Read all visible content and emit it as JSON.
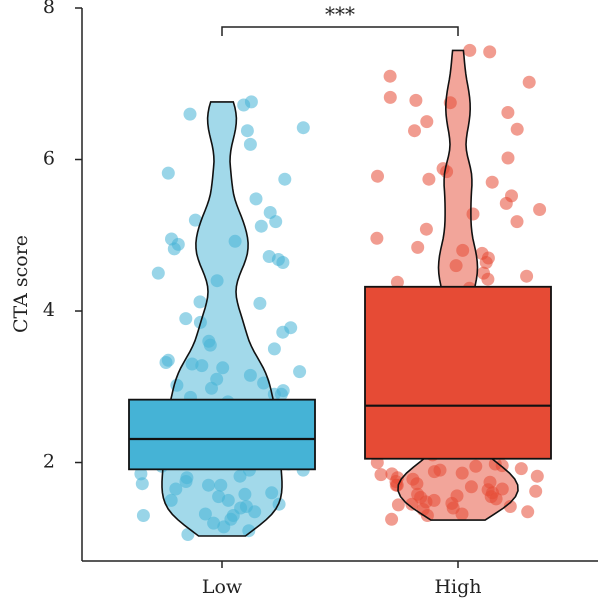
{
  "chart_data": {
    "type": "box",
    "ylabel": "CTA score",
    "ylim": [
      0.7,
      8
    ],
    "yticks": [
      2,
      4,
      6,
      8
    ],
    "categories": [
      "Low",
      "High"
    ],
    "series": [
      {
        "name": "Low",
        "color": "#45B3D6",
        "box": {
          "q1": 1.91,
          "median": 2.31,
          "q3": 2.83,
          "min": 1.03,
          "max": 6.76
        },
        "points": [
          6.38,
          6.6,
          6.72,
          6.42,
          6.76,
          6.2,
          5.82,
          5.74,
          5.48,
          5.18,
          5.12,
          5.2,
          5.3,
          4.95,
          4.92,
          4.88,
          4.82,
          4.72,
          4.64,
          4.68,
          4.5,
          4.4,
          4.1,
          4.12,
          3.9,
          3.85,
          3.78,
          3.72,
          3.6,
          3.55,
          3.5,
          3.35,
          3.32,
          3.3,
          3.28,
          3.25,
          3.2,
          3.1,
          3.05,
          3.02,
          2.98,
          2.95,
          2.9,
          2.86,
          2.8,
          2.75,
          2.7,
          2.65,
          2.6,
          2.55,
          2.5,
          2.45,
          2.4,
          2.35,
          2.3,
          2.25,
          2.2,
          2.15,
          2.1,
          2.05,
          2.0,
          1.95,
          1.9,
          1.85,
          1.8,
          1.75,
          1.7,
          1.65,
          1.6,
          1.55,
          1.5,
          1.45,
          1.4,
          1.35,
          1.3,
          1.25,
          1.2,
          1.15,
          1.1,
          1.05,
          2.62,
          2.48,
          2.28,
          2.12,
          1.98,
          1.82,
          1.72,
          1.58,
          1.42,
          1.32,
          2.7,
          2.5,
          2.3,
          2.2,
          1.9,
          1.7,
          1.5,
          1.3,
          3.15,
          2.9
        ]
      },
      {
        "name": "High",
        "color": "#E64B35",
        "box": {
          "q1": 2.05,
          "median": 2.75,
          "q3": 4.32,
          "min": 1.24,
          "max": 7.44
        },
        "points": [
          7.44,
          7.42,
          7.1,
          7.02,
          6.82,
          6.78,
          6.75,
          6.62,
          6.5,
          6.4,
          6.38,
          6.02,
          5.88,
          5.84,
          5.78,
          5.74,
          5.7,
          5.52,
          5.42,
          5.34,
          5.28,
          5.18,
          5.08,
          4.96,
          4.84,
          4.8,
          4.76,
          4.7,
          4.64,
          4.6,
          4.5,
          4.46,
          4.42,
          4.38,
          4.3,
          4.22,
          4.1,
          4.0,
          3.9,
          3.8,
          3.7,
          3.6,
          3.5,
          3.4,
          3.3,
          3.2,
          3.1,
          3.0,
          2.9,
          2.8,
          2.7,
          2.6,
          2.5,
          2.4,
          2.3,
          2.2,
          2.1,
          2.0,
          1.95,
          1.9,
          1.85,
          1.8,
          1.75,
          1.7,
          1.65,
          1.6,
          1.55,
          1.5,
          1.45,
          1.4,
          1.35,
          1.3,
          1.25,
          1.92,
          1.88,
          1.82,
          1.78,
          1.72,
          1.68,
          1.62,
          1.58,
          1.52,
          1.48,
          1.42,
          1.38,
          1.32,
          1.98,
          1.86,
          1.74,
          1.64,
          1.54,
          1.44,
          1.96,
          1.84,
          1.7,
          1.56,
          1.46,
          2.45,
          2.62,
          3.15
        ]
      }
    ],
    "significance": {
      "label": "***",
      "between": [
        "Low",
        "High"
      ],
      "y": 7.75
    }
  }
}
